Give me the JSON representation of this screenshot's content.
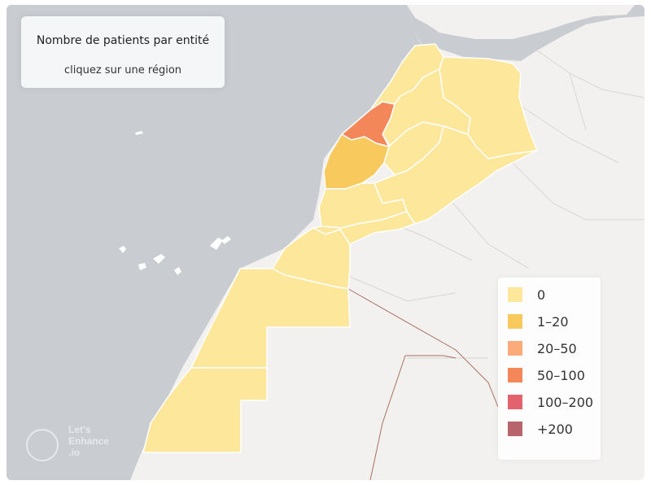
{
  "info": {
    "title": "Nombre de patients par entité",
    "subtitle": "cliquez sur une région"
  },
  "legend": [
    {
      "label": "0",
      "color": "#fde79b"
    },
    {
      "label": "1–20",
      "color": "#f8c95c"
    },
    {
      "label": "20–50",
      "color": "#fbab7a"
    },
    {
      "label": "50–100",
      "color": "#f4875a"
    },
    {
      "label": "100–200",
      "color": "#e2636e"
    },
    {
      "label": "+200",
      "color": "#b8646c"
    }
  ],
  "regions": [
    {
      "name": "Tanger-Tétouan-Al Hoceïma",
      "value_class": "0",
      "color": "#fde79b"
    },
    {
      "name": "Oriental",
      "value_class": "0",
      "color": "#fde79b"
    },
    {
      "name": "Fès-Meknès",
      "value_class": "0",
      "color": "#fde79b"
    },
    {
      "name": "Rabat-Salé-Kénitra",
      "value_class": "50–100",
      "color": "#f4875a"
    },
    {
      "name": "Béni Mellal-Khénifra",
      "value_class": "0",
      "color": "#fde79b"
    },
    {
      "name": "Casablanca-Settat",
      "value_class": "1–20",
      "color": "#f8c95c"
    },
    {
      "name": "Marrakech-Safi",
      "value_class": "1–20",
      "color": "#f8c95c"
    },
    {
      "name": "Drâa-Tafilalet",
      "value_class": "0",
      "color": "#fde79b"
    },
    {
      "name": "Souss-Massa",
      "value_class": "0",
      "color": "#fde79b"
    },
    {
      "name": "Guelmim-Oued Noun",
      "value_class": "0",
      "color": "#fde79b"
    },
    {
      "name": "Laâyoune-Sakia El Hamra",
      "value_class": "0",
      "color": "#fde79b"
    },
    {
      "name": "Dakhla-Oued Ed-Dahab",
      "value_class": "0",
      "color": "#fde79b"
    }
  ],
  "watermark": {
    "line1": "Let's",
    "line2": "Enhance",
    "line3": ".io"
  }
}
